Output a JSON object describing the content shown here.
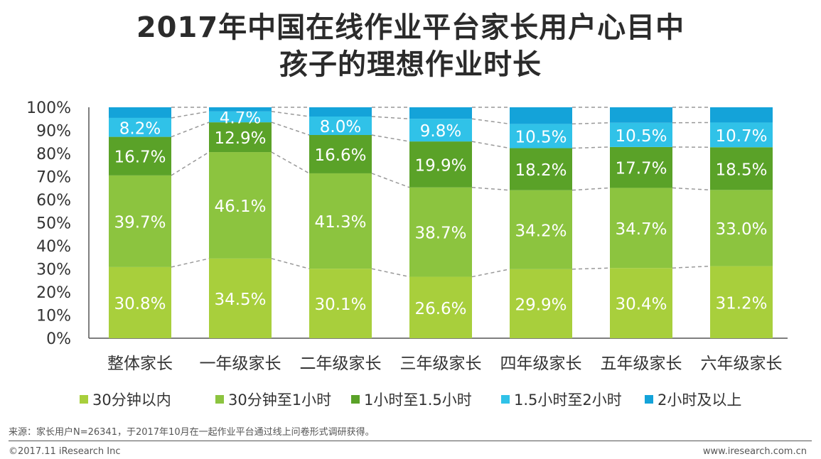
{
  "page": {
    "title_line_1": "2017年中国在线作业平台家长用户心目中",
    "title_line_2": "孩子的理想作业时长",
    "source_note": "来源：家长用户N=26341，于2017年10月在一起作业平台通过线上问卷形式调研获得。",
    "copyright": "©2017.11 iResearch Inc",
    "site_url": "www.iresearch.com.cn"
  },
  "chart_data": {
    "type": "bar",
    "stacked": true,
    "percent": true,
    "categories": [
      "整体家长",
      "一年级家长",
      "二年级家长",
      "三年级家长",
      "四年级家长",
      "五年级家长",
      "六年级家长"
    ],
    "series": [
      {
        "name": "30分钟以内",
        "color": "#a8cf3c",
        "values": [
          30.8,
          34.5,
          30.1,
          26.6,
          29.9,
          30.4,
          31.2
        ]
      },
      {
        "name": "30分钟至1小时",
        "color": "#8cc43f",
        "values": [
          39.7,
          46.1,
          41.3,
          38.7,
          34.2,
          34.7,
          33.0
        ]
      },
      {
        "name": "1小时至1.5小时",
        "color": "#5aa228",
        "values": [
          16.7,
          12.9,
          16.6,
          19.9,
          18.2,
          17.7,
          18.5
        ]
      },
      {
        "name": "1.5小时至2小时",
        "color": "#30c2e8",
        "values": [
          8.2,
          4.7,
          8.0,
          9.8,
          10.5,
          10.5,
          10.7
        ]
      },
      {
        "name": "2小时及以上",
        "color": "#14a3d9",
        "values": [
          4.6,
          1.8,
          4.0,
          5.0,
          7.2,
          6.7,
          6.6
        ]
      }
    ],
    "series_labels_shown": [
      true,
      true,
      true,
      true,
      false
    ],
    "ylim": [
      0,
      100
    ],
    "yticks": [
      "0%",
      "10%",
      "20%",
      "30%",
      "40%",
      "50%",
      "60%",
      "70%",
      "80%",
      "90%",
      "100%"
    ],
    "legend": "bottom",
    "grid": false,
    "connector_lines": "dashed"
  }
}
